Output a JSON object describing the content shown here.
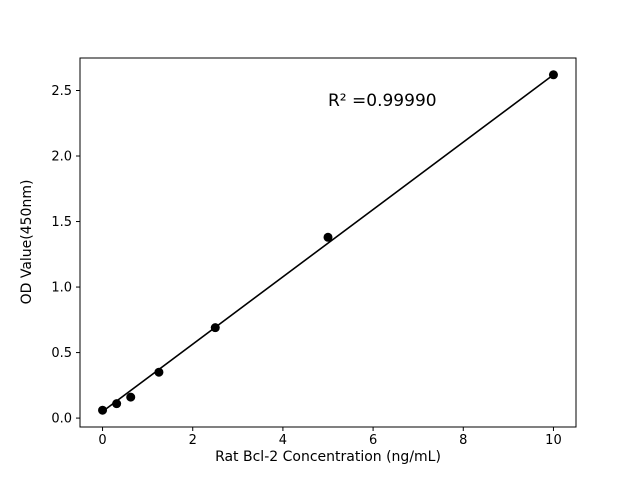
{
  "chart_data": {
    "type": "scatter",
    "title": "",
    "xlabel": "Rat Bcl-2 Concentration (ng/mL)",
    "ylabel": "OD Value(450nm)",
    "annotation": "R² =0.99990",
    "x": [
      0,
      0.3125,
      0.625,
      1.25,
      2.5,
      5,
      10
    ],
    "y": [
      0.06,
      0.11,
      0.16,
      0.35,
      0.69,
      1.38,
      2.62
    ],
    "line": {
      "x": [
        0,
        10
      ],
      "y": [
        0.05,
        2.62
      ]
    },
    "xlim": [
      -0.5,
      10.5
    ],
    "ylim": [
      -0.068,
      2.748
    ],
    "xticks": [
      0,
      2,
      4,
      6,
      8,
      10
    ],
    "yticks": [
      0,
      0.5,
      1,
      1.5,
      2,
      2.5
    ],
    "grid": false,
    "legend": null,
    "marker_color": "#000000",
    "line_color": "#000000",
    "axis_color": "#000000",
    "background": "#ffffff"
  }
}
